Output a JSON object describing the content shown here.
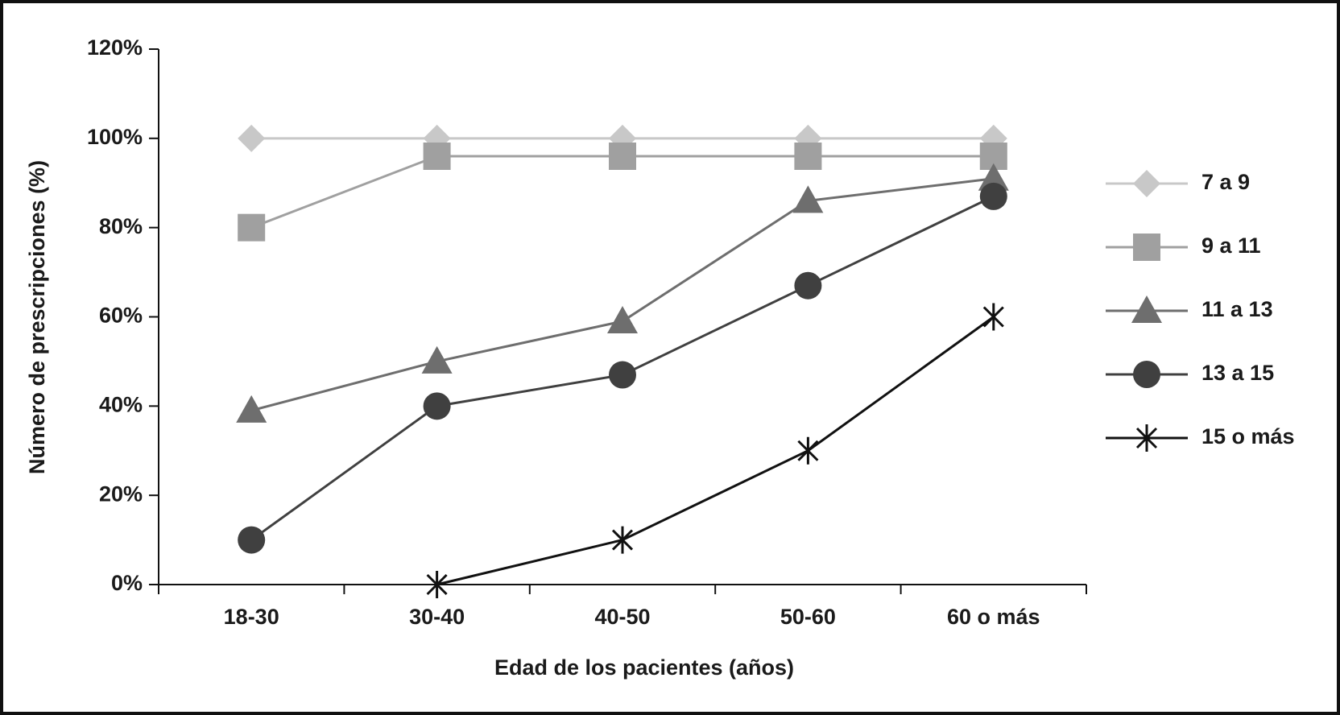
{
  "chart_data": {
    "type": "line",
    "x_label": "Edad de los pacientes (años)",
    "y_label": "Número de prescripciones (%)",
    "categories": [
      "18-30",
      "30-40",
      "40-50",
      "50-60",
      "60 o más"
    ],
    "series": [
      {
        "name": "7 a 9",
        "color": "#c8c8c8",
        "marker": "diamond",
        "values": [
          100,
          100,
          100,
          100,
          100
        ]
      },
      {
        "name": "9 a 11",
        "color": "#a0a0a0",
        "marker": "square",
        "values": [
          80,
          96,
          96,
          96,
          96
        ]
      },
      {
        "name": "11 a 13",
        "color": "#6e6e6e",
        "marker": "triangle",
        "values": [
          39,
          50,
          59,
          86,
          91
        ]
      },
      {
        "name": "13 a 15",
        "color": "#404040",
        "marker": "circle",
        "values": [
          10,
          40,
          47,
          67,
          87
        ]
      },
      {
        "name": "15 o más",
        "color": "#111111",
        "marker": "star",
        "values": [
          null,
          0,
          10,
          30,
          60
        ]
      }
    ],
    "ylim": [
      0,
      120
    ],
    "yticks": [
      {
        "value": 0,
        "label": "0%"
      },
      {
        "value": 20,
        "label": "20%"
      },
      {
        "value": 40,
        "label": "40%"
      },
      {
        "value": 60,
        "label": "60%"
      },
      {
        "value": 80,
        "label": "80%"
      },
      {
        "value": 100,
        "label": "100%"
      },
      {
        "value": 120,
        "label": "120%"
      }
    ],
    "legend": "right"
  }
}
